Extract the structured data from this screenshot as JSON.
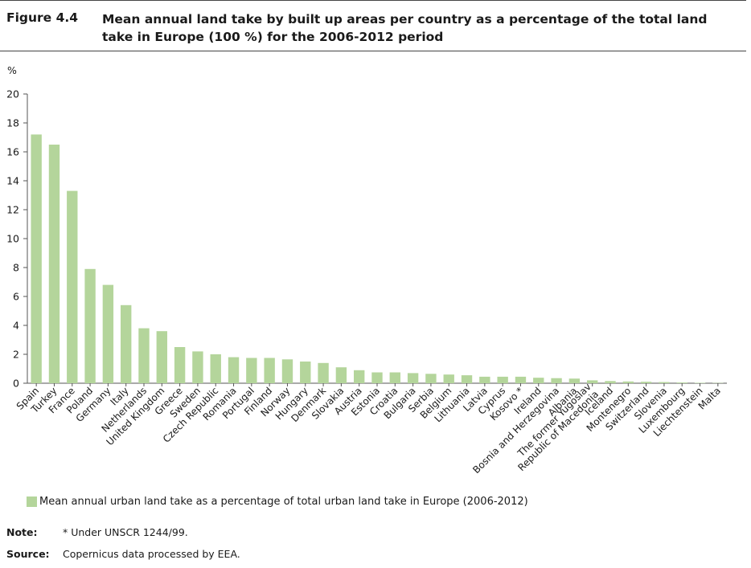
{
  "figure": {
    "number": "Figure 4.4",
    "title": "Mean annual land take by built up areas per country as a percentage of the total land take in Europe (100 %) for the 2006-2012 period"
  },
  "chart_data": {
    "type": "bar",
    "ylabel": "%",
    "ylim": [
      0,
      20
    ],
    "yticks": [
      "0",
      "2",
      "4",
      "6",
      "8",
      "10",
      "12",
      "14",
      "16",
      "18",
      "20"
    ],
    "categories": [
      "Spain",
      "Turkey",
      "France",
      "Poland",
      "Germany",
      "Italy",
      "Netherlands",
      "United Kingdom",
      "Greece",
      "Sweden",
      "Czech Republic",
      "Romania",
      "Portugal",
      "Finland",
      "Norway",
      "Hungary",
      "Denmark",
      "Slovakia",
      "Austria",
      "Estonia",
      "Croatia",
      "Bulgaria",
      "Serbia",
      "Belgium",
      "Lithuania",
      "Latvia",
      "Cyprus",
      "Kosovo *",
      "Ireland",
      "Bosnia and Herzegovina",
      "Albania",
      "The former Yugoslav Republic of Macedonia",
      "Iceland",
      "Montenegro",
      "Switzerland",
      "Slovenia",
      "Luxembourg",
      "Liechtenstein",
      "Malta"
    ],
    "series": [
      {
        "name": "Mean annual urban land take as a percentage of total urban land take in Europe (2006-2012)",
        "color": "#b4d59b",
        "values": [
          17.2,
          16.5,
          13.3,
          7.9,
          6.8,
          5.4,
          3.8,
          3.6,
          2.5,
          2.2,
          2.0,
          1.8,
          1.75,
          1.75,
          1.65,
          1.5,
          1.4,
          1.1,
          0.9,
          0.75,
          0.75,
          0.7,
          0.65,
          0.6,
          0.55,
          0.45,
          0.45,
          0.45,
          0.38,
          0.35,
          0.32,
          0.2,
          0.15,
          0.12,
          0.1,
          0.08,
          0.05,
          0.03,
          0.02
        ]
      }
    ]
  },
  "legend": {
    "label": "Mean annual urban land take as a percentage of total urban land take in Europe (2006-2012)"
  },
  "notes": {
    "note_label": "Note:",
    "note_text": "* Under UNSCR 1244/99.",
    "source_label": "Source:",
    "source_text": "Copernicus data processed by EEA."
  }
}
